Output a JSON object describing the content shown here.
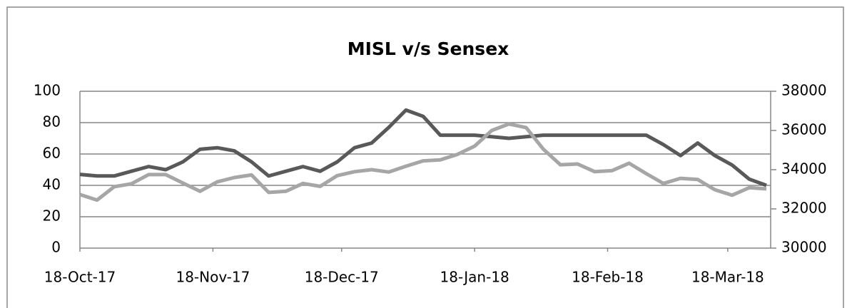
{
  "chart_data": {
    "type": "line",
    "title": "MISL v/s Sensex",
    "x": [
      "2017-10-18",
      "2017-10-22",
      "2017-10-26",
      "2017-10-30",
      "2017-11-03",
      "2017-11-07",
      "2017-11-11",
      "2017-11-15",
      "2017-11-19",
      "2017-11-23",
      "2017-11-27",
      "2017-12-01",
      "2017-12-05",
      "2017-12-09",
      "2017-12-13",
      "2017-12-17",
      "2017-12-21",
      "2017-12-25",
      "2017-12-29",
      "2018-01-02",
      "2018-01-06",
      "2018-01-10",
      "2018-01-14",
      "2018-01-18",
      "2018-01-22",
      "2018-01-26",
      "2018-01-30",
      "2018-02-03",
      "2018-02-07",
      "2018-02-11",
      "2018-02-15",
      "2018-02-19",
      "2018-02-23",
      "2018-02-27",
      "2018-03-03",
      "2018-03-07",
      "2018-03-11",
      "2018-03-15",
      "2018-03-19",
      "2018-03-23",
      "2018-03-27"
    ],
    "series": [
      {
        "color": "#595959",
        "values": [
          47,
          46,
          46,
          49,
          52,
          50,
          55,
          63,
          64,
          62,
          55,
          46,
          49,
          52,
          49,
          55,
          64,
          67,
          77,
          88,
          84,
          72,
          72,
          72,
          71,
          70,
          71,
          72,
          72,
          72,
          72,
          72,
          72,
          72,
          66,
          59,
          67,
          59,
          53,
          44,
          40
        ]
      },
      {
        "color": "#a6a6a6",
        "axis": "y2",
        "values": [
          32730,
          32450,
          33130,
          33280,
          33750,
          33750,
          33320,
          32900,
          33380,
          33600,
          33730,
          32840,
          32900,
          33300,
          33150,
          33700,
          33900,
          34000,
          33880,
          34180,
          34450,
          34500,
          34780,
          35200,
          36000,
          36330,
          36150,
          35050,
          34250,
          34290,
          33900,
          33950,
          34330,
          33800,
          33300,
          33560,
          33500,
          32980,
          32700,
          33080,
          33020
        ]
      }
    ],
    "xlim": [
      "2017-10-18",
      "2018-03-28"
    ],
    "xticks": [
      {
        "value": "2017-10-18",
        "label": "18-Oct-17"
      },
      {
        "value": "2017-11-18",
        "label": "18-Nov-17"
      },
      {
        "value": "2017-12-18",
        "label": "18-Dec-17"
      },
      {
        "value": "2018-01-18",
        "label": "18-Jan-18"
      },
      {
        "value": "2018-02-18",
        "label": "18-Feb-18"
      },
      {
        "value": "2018-03-18",
        "label": "18-Mar-18"
      }
    ],
    "ylim": [
      0,
      100
    ],
    "yticks": [
      0,
      20,
      40,
      60,
      80,
      100
    ],
    "y2lim": [
      30000,
      38000
    ],
    "y2ticks": [
      30000,
      32000,
      34000,
      36000,
      38000
    ],
    "grid": true
  }
}
